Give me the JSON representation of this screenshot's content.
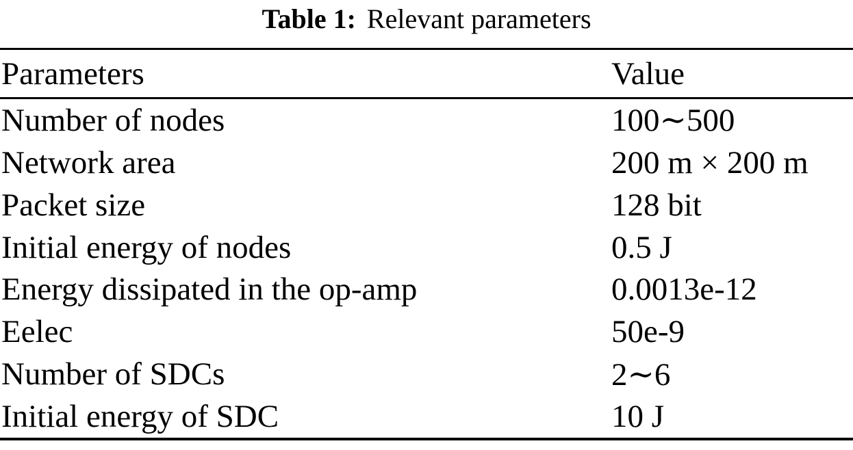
{
  "table": {
    "caption": {
      "label": "Table 1:",
      "title": "Relevant parameters"
    },
    "columns": [
      "Parameters",
      "Value"
    ],
    "rows": [
      {
        "parameter": "Number of nodes",
        "value": "100∼500"
      },
      {
        "parameter": "Network area",
        "value": "200 m × 200 m"
      },
      {
        "parameter": "Packet size",
        "value": "128 bit"
      },
      {
        "parameter": "Initial energy of nodes",
        "value": "0.5 J"
      },
      {
        "parameter": "Energy dissipated in the op-amp",
        "value": "0.0013e-12"
      },
      {
        "parameter": "Eelec",
        "value": "50e-9"
      },
      {
        "parameter": "Number of SDCs",
        "value": "2∼6"
      },
      {
        "parameter": "Initial energy of SDC",
        "value": "10 J"
      }
    ],
    "colors": {
      "text": "#000000",
      "background": "#ffffff",
      "rule": "#000000"
    }
  }
}
